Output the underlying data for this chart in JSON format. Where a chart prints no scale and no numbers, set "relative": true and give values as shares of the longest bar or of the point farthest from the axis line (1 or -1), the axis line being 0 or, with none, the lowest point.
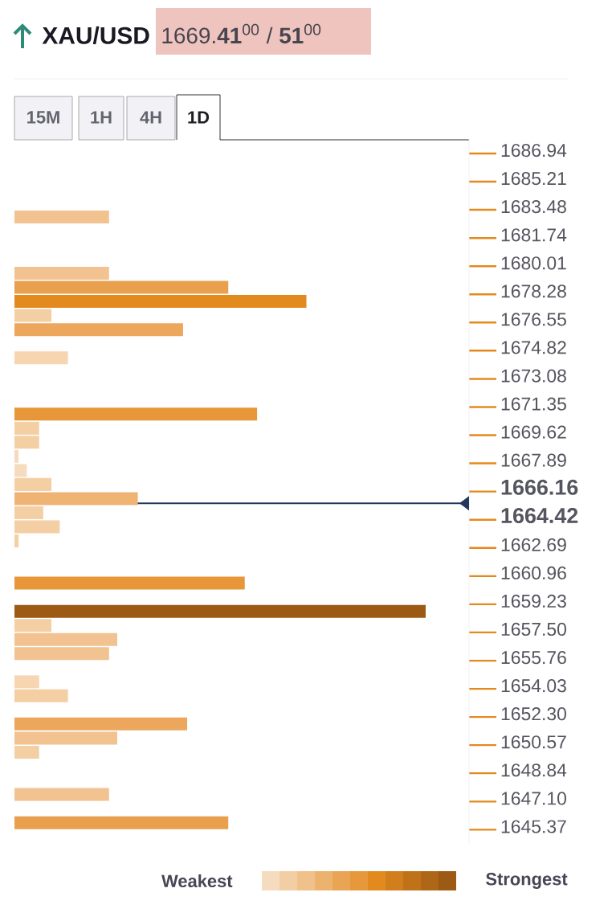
{
  "chart_data": {
    "type": "bar",
    "orientation": "horizontal",
    "relative": true,
    "title": "XAU/USD",
    "annotations": [
      "1669.**41**$^{00}$ / **51**$^{00}$",
      "15M",
      "1H",
      "4H",
      "1D",
      "Weakest",
      "Strongest"
    ],
    "x": [
      1683.04,
      1679.58,
      1678.71,
      1677.85,
      1676.98,
      1676.11,
      1674.38,
      1670.92,
      1670.05,
      1669.19,
      1668.32,
      1667.45,
      1666.59,
      1665.72,
      1664.86,
      1663.99,
      1663.12,
      1660.53,
      1658.79,
      1657.93,
      1657.06,
      1656.2,
      1654.46,
      1653.6,
      1651.87,
      1651.0,
      1650.13,
      1647.54,
      1645.8
    ],
    "values": [
      0.23,
      0.23,
      0.52,
      0.71,
      0.09,
      0.41,
      0.13,
      0.59,
      0.06,
      0.06,
      0.01,
      0.03,
      0.09,
      0.3,
      0.07,
      0.11,
      0.01,
      0.56,
      1.0,
      0.09,
      0.25,
      0.23,
      0.06,
      0.13,
      0.42,
      0.25,
      0.06,
      0.23,
      0.52
    ],
    "colors": [
      "#f2c290",
      "#f2c290",
      "#e9a04d",
      "#e38a1f",
      "#f4cfa4",
      "#eca75c",
      "#f6d5b0",
      "#e8963a",
      "#f4cfa4",
      "#f4cfa4",
      "#f6dcbf",
      "#f6dcbf",
      "#f4cfa4",
      "#efb473",
      "#f4cfa4",
      "#f4cfa4",
      "#f4cfa4",
      "#e8963a",
      "#9c5a14",
      "#f4cfa4",
      "#f2c290",
      "#f2c290",
      "#f6d5b0",
      "#f4cfa4",
      "#eca75c",
      "#f2c290",
      "#f4cfa4",
      "#f2c290",
      "#e9a04d"
    ],
    "ylim": [
      1644.5,
      1687.81
    ],
    "yticks": [
      1686.94,
      1685.21,
      1683.48,
      1681.74,
      {
        "value": 1680.01,
        "label": "1680.01"
      },
      1678.28,
      1676.55,
      1674.82,
      1673.08,
      1671.35,
      1669.62,
      1667.89,
      1666.16,
      1664.42,
      1662.69,
      1660.96,
      1659.23,
      {
        "value": 1657.5,
        "label": "1657.50"
      },
      1655.76,
      1654.03,
      {
        "value": 1652.3,
        "label": "1652.30"
      },
      1650.57,
      1648.84,
      {
        "value": 1647.1,
        "label": "1647.10"
      },
      1645.37
    ],
    "ref_lines": [
      {
        "axis": "y",
        "value": 1665.44,
        "color": "#24385b"
      }
    ]
  }
}
